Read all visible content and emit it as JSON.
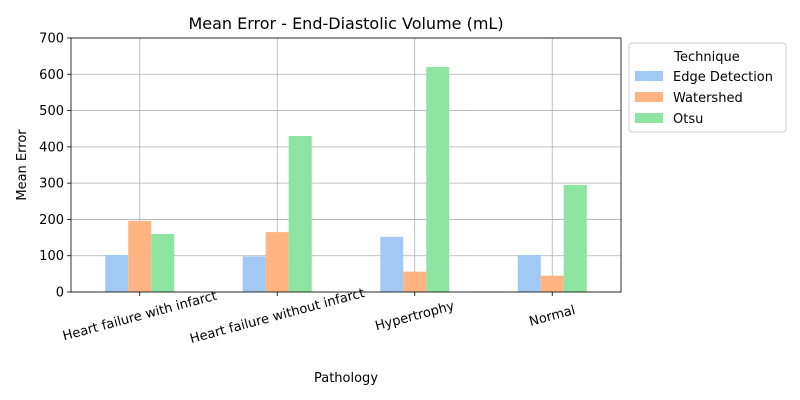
{
  "chart_data": {
    "type": "bar",
    "title": "Mean Error - End-Diastolic Volume (mL)",
    "xlabel": "Pathology",
    "ylabel": "Mean Error",
    "categories": [
      "Heart failure with infarct",
      "Heart failure without infarct",
      "Hypertrophy",
      "Normal"
    ],
    "series": [
      {
        "name": "Edge Detection",
        "color": "#a1c9f4",
        "values": [
          102,
          98,
          152,
          102
        ]
      },
      {
        "name": "Watershed",
        "color": "#ffb482",
        "values": [
          196,
          165,
          56,
          45
        ]
      },
      {
        "name": "Otsu",
        "color": "#8de5a1",
        "values": [
          160,
          430,
          620,
          295
        ]
      }
    ],
    "ylim": [
      0,
      700
    ],
    "yticks": [
      0,
      100,
      200,
      300,
      400,
      500,
      600,
      700
    ],
    "grid": true,
    "legend": {
      "title": "Technique",
      "placement": "outside-top-right"
    }
  }
}
